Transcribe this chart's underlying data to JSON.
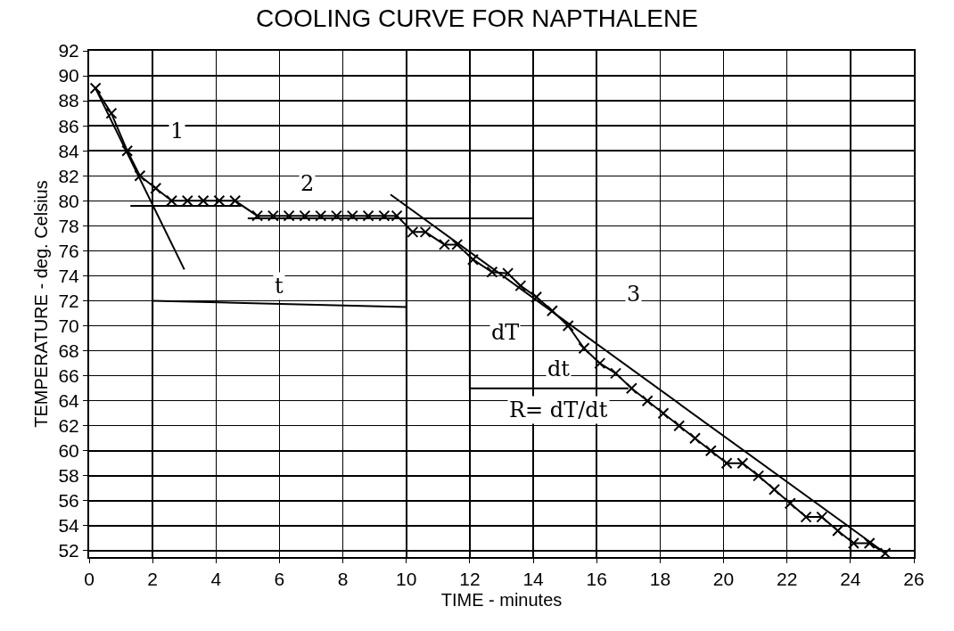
{
  "chart_data": {
    "type": "line",
    "title": "COOLING CURVE FOR NAPTHALENE",
    "xlabel": "TIME - minutes",
    "ylabel": "TEMPERATURE - deg. Celsius",
    "xlim": [
      0,
      26
    ],
    "xticks": [
      0,
      2,
      4,
      6,
      8,
      10,
      12,
      14,
      16,
      18,
      20,
      22,
      24,
      26
    ],
    "ylim": [
      51.5,
      92
    ],
    "yticks": [
      52,
      54,
      56,
      58,
      60,
      62,
      64,
      66,
      68,
      70,
      72,
      74,
      76,
      78,
      80,
      82,
      84,
      86,
      88,
      90,
      92
    ],
    "grid": true,
    "line_style": "solid",
    "series": [
      {
        "color": "#000000",
        "marker": "cross",
        "x": [
          0.2,
          0.7,
          1.2,
          1.6,
          2.1,
          2.6,
          3.1,
          3.6,
          4.1,
          4.6,
          5.3,
          5.8,
          6.3,
          6.8,
          7.3,
          7.8,
          8.3,
          8.8,
          9.3,
          9.7,
          10.2,
          10.6,
          11.2,
          11.6,
          12.1,
          12.7,
          13.2,
          13.6,
          14.1,
          14.6,
          15.1,
          15.6,
          16.1,
          16.6,
          17.1,
          17.6,
          18.1,
          18.6,
          19.1,
          19.6,
          20.1,
          20.6,
          21.1,
          21.6,
          22.1,
          22.6,
          23.1,
          23.6,
          24.1,
          24.6,
          25.1
        ],
        "values": [
          89,
          87,
          84,
          82,
          81,
          80,
          80,
          80,
          80,
          80,
          78.8,
          78.8,
          78.8,
          78.8,
          78.8,
          78.8,
          78.8,
          78.8,
          78.8,
          78.8,
          77.5,
          77.5,
          76.5,
          76.5,
          75.3,
          74.3,
          74.2,
          73.2,
          72.3,
          71.2,
          70,
          68.2,
          67,
          66.2,
          65,
          64,
          63,
          62,
          61,
          60,
          59,
          59,
          58,
          56.9,
          55.8,
          54.7,
          54.7,
          53.6,
          52.6,
          52.6,
          51.8
        ]
      },
      {
        "color": "#000000",
        "marker": "none",
        "x": [
          0.2,
          3
        ],
        "values": [
          89,
          74.5
        ]
      },
      {
        "color": "#000000",
        "marker": "none",
        "x": [
          1.3,
          4.8
        ],
        "values": [
          79.6,
          79.6
        ]
      },
      {
        "color": "#000000",
        "marker": "none",
        "x": [
          5,
          14
        ],
        "values": [
          78.6,
          78.6
        ]
      },
      {
        "color": "#000000",
        "marker": "none",
        "x": [
          9.5,
          25
        ],
        "values": [
          80.5,
          52
        ]
      },
      {
        "color": "#000000",
        "marker": "none",
        "x": [
          2,
          2
        ],
        "values": [
          70,
          78
        ]
      },
      {
        "color": "#000000",
        "marker": "none",
        "x": [
          10,
          10
        ],
        "values": [
          70,
          78
        ]
      },
      {
        "color": "#000000",
        "marker": "none",
        "x": [
          2,
          10
        ],
        "values": [
          72,
          71.5
        ]
      },
      {
        "color": "#000000",
        "marker": "none",
        "x": [
          12,
          12,
          17
        ],
        "values": [
          75,
          65,
          65
        ]
      }
    ],
    "annotations": [
      "1",
      "2",
      "3",
      "t",
      "dT",
      "dt",
      "R= dT/dt"
    ]
  }
}
